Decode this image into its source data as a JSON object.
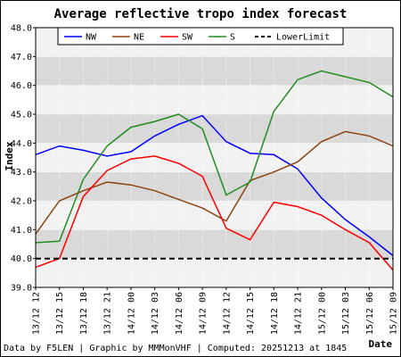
{
  "chart_data": {
    "type": "line",
    "title": "Average reflective tropo index forecast",
    "xlabel": "Date",
    "ylabel": "Index",
    "ylim": [
      39.0,
      48.0
    ],
    "yticks": [
      "39.0",
      "40.0",
      "41.0",
      "42.0",
      "43.0",
      "44.0",
      "45.0",
      "46.0",
      "47.0",
      "48.0"
    ],
    "categories": [
      "13/12 12",
      "13/12 15",
      "13/12 18",
      "13/12 21",
      "14/12 00",
      "14/12 03",
      "14/12 06",
      "14/12 09",
      "14/12 12",
      "14/12 15",
      "14/12 18",
      "14/12 21",
      "15/12 00",
      "15/12 03",
      "15/12 06",
      "15/12 09"
    ],
    "grid": true,
    "legend_position": "top",
    "series": [
      {
        "name": "NW",
        "color": "#0000ff",
        "dash": "none",
        "values": [
          43.6,
          43.9,
          43.75,
          43.55,
          43.7,
          44.25,
          44.65,
          44.95,
          44.05,
          43.65,
          43.6,
          43.1,
          42.1,
          41.35,
          40.75,
          40.1
        ]
      },
      {
        "name": "NE",
        "color": "#8b4513",
        "dash": "none",
        "values": [
          40.85,
          42.0,
          42.35,
          42.65,
          42.55,
          42.35,
          42.05,
          41.75,
          41.3,
          42.7,
          43.0,
          43.35,
          44.05,
          44.4,
          44.25,
          43.9
        ]
      },
      {
        "name": "SW",
        "color": "#ff0000",
        "dash": "none",
        "values": [
          39.7,
          40.0,
          42.15,
          43.05,
          43.45,
          43.55,
          43.3,
          42.85,
          41.05,
          40.65,
          41.95,
          41.8,
          41.5,
          41.0,
          40.55,
          39.6
        ]
      },
      {
        "name": "S",
        "color": "#228b22",
        "dash": "none",
        "values": [
          40.55,
          40.6,
          42.75,
          43.9,
          44.55,
          44.75,
          45.0,
          44.5,
          42.2,
          42.65,
          45.1,
          46.2,
          46.5,
          46.3,
          46.1,
          45.6
        ]
      },
      {
        "name": "LowerLimit",
        "color": "#000000",
        "dash": "6,4",
        "values": [
          40.0,
          40.0,
          40.0,
          40.0,
          40.0,
          40.0,
          40.0,
          40.0,
          40.0,
          40.0,
          40.0,
          40.0,
          40.0,
          40.0,
          40.0,
          40.0
        ]
      }
    ],
    "footer": "Data by F5LEN | Graphic by MMMonVHF | Computed: 20251213 at 1845"
  }
}
